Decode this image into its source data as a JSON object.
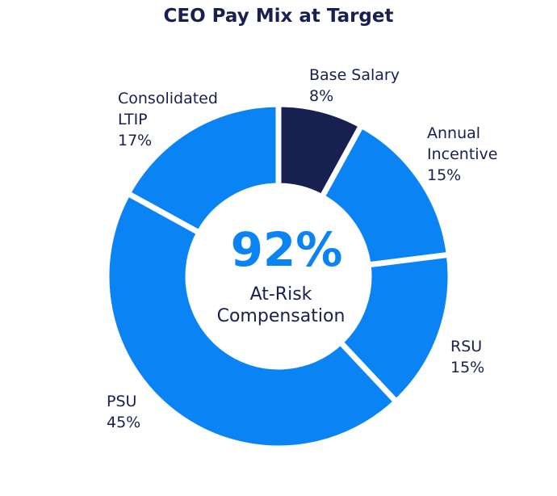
{
  "chart_data": {
    "type": "pie",
    "title": "CEO Pay Mix at Target",
    "center": {
      "value": "92%",
      "label_line1": "At-Risk",
      "label_line2": "Compensation"
    },
    "slices": [
      {
        "label_lines": [
          "Base Salary"
        ],
        "value": 8,
        "value_label": "8%",
        "color": "#17204f"
      },
      {
        "label_lines": [
          "Annual",
          "Incentive"
        ],
        "value": 15,
        "value_label": "15%",
        "color": "#0a84f5"
      },
      {
        "label_lines": [
          "RSU"
        ],
        "value": 15,
        "value_label": "15%",
        "color": "#0a84f5"
      },
      {
        "label_lines": [
          "PSU"
        ],
        "value": 45,
        "value_label": "45%",
        "color": "#0a84f5"
      },
      {
        "label_lines": [
          "Consolidated",
          "LTIP"
        ],
        "value": 17,
        "value_label": "17%",
        "color": "#0a84f5"
      }
    ]
  },
  "colors": {
    "accent": "#0a84f5",
    "dark": "#17204f",
    "background": "#ffffff"
  }
}
